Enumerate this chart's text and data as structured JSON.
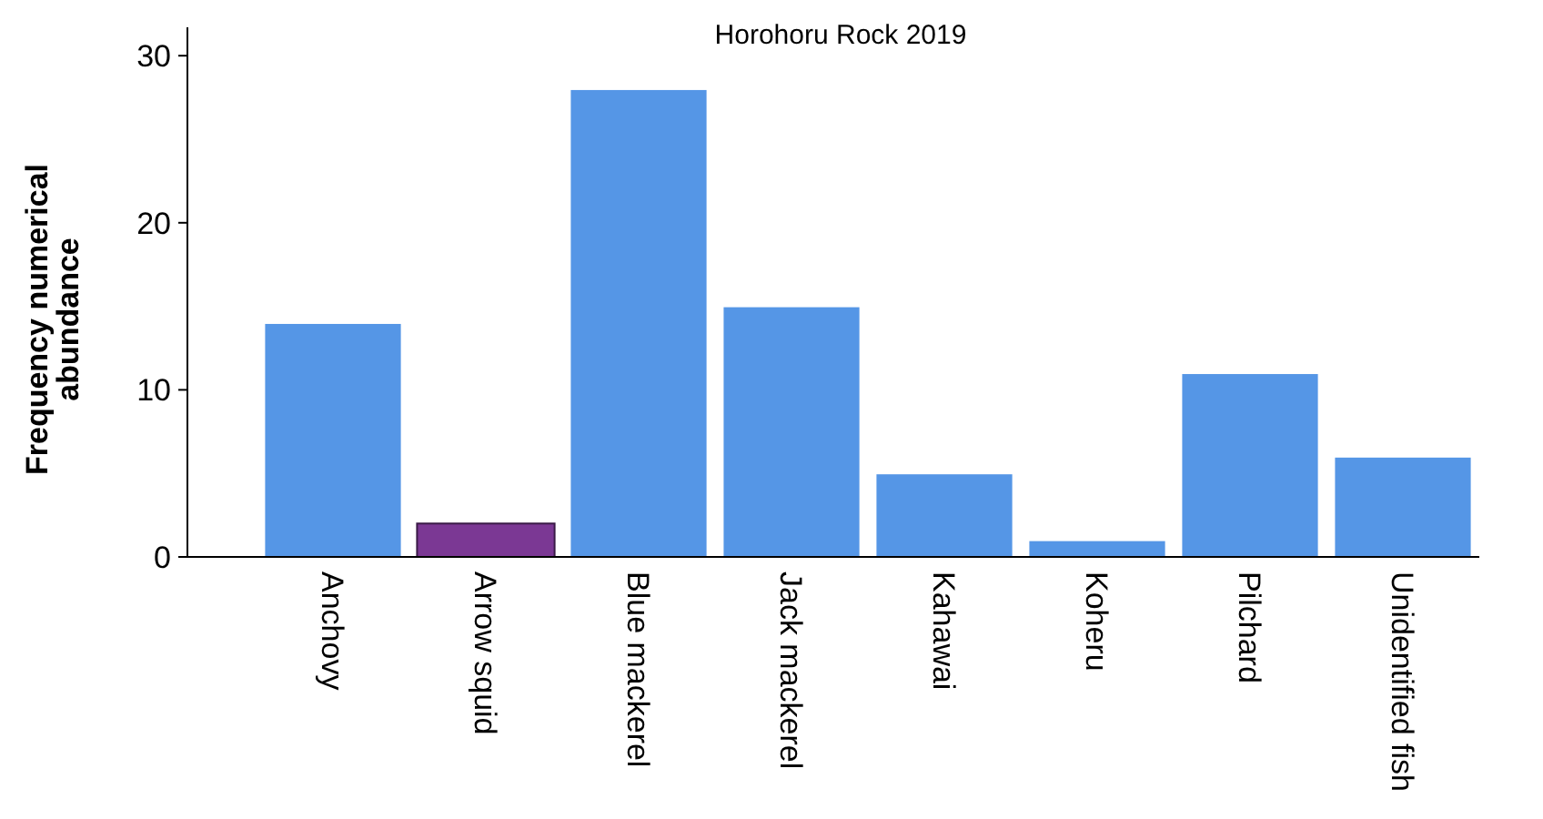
{
  "chart_data": {
    "type": "bar",
    "title": "Horohoru Rock 2019",
    "ylabel": "Frequency numerical abundance",
    "categories": [
      "Anchovy",
      "Arrow squid",
      "Blue mackerel",
      "Jack mackerel",
      "Kahawai",
      "Koheru",
      "Pilchard",
      "Unidentified fish"
    ],
    "values": [
      14,
      2,
      28,
      15,
      5,
      1,
      11,
      6
    ],
    "colors": [
      "#5596e6",
      "#7b3894",
      "#5596e6",
      "#5596e6",
      "#5596e6",
      "#5596e6",
      "#5596e6",
      "#5596e6"
    ],
    "ylim": [
      0,
      31.7
    ],
    "yticks": [
      0,
      10,
      20,
      30
    ],
    "grid": false
  }
}
